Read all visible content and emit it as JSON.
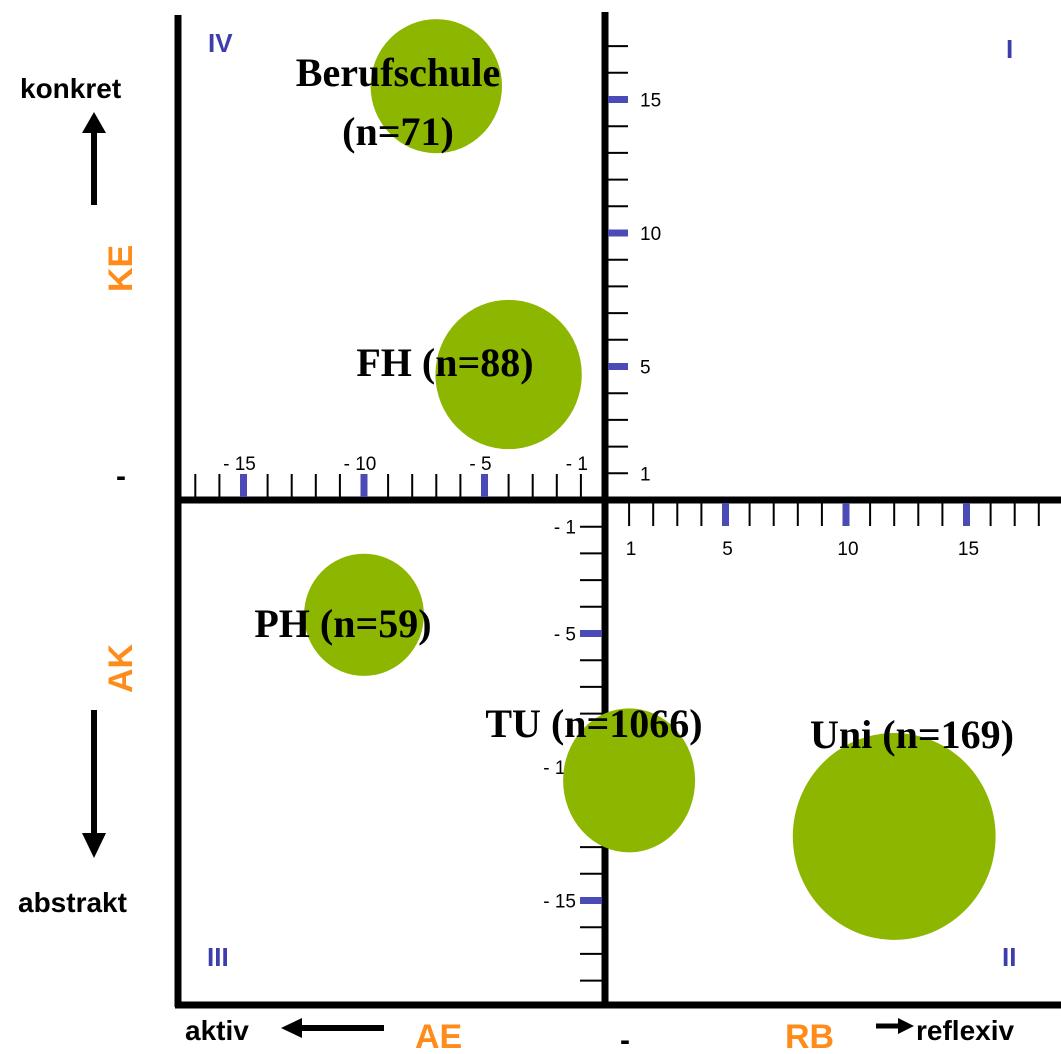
{
  "colors": {
    "bubble": "#8db600",
    "orange": "#ff8c1a",
    "quadrant": "#3d3dab",
    "tick_major": "#4b4bb5",
    "axis": "#000000"
  },
  "labels": {
    "konkret": "konkret",
    "abstrakt": "abstrakt",
    "ke": "KE",
    "ak": "AK",
    "ae": "AE",
    "rb": "RB",
    "aktiv": "aktiv",
    "reflexiv": "reflexiv",
    "dash_left": "-",
    "dash_bottom": "-"
  },
  "quadrants": {
    "q1": "I",
    "q2": "II",
    "q3": "III",
    "q4": "IV"
  },
  "chart_data": {
    "type": "scatter",
    "bubbles": [
      {
        "label": "Berufschule",
        "label2": "(n=71)",
        "n": 71,
        "x": -7,
        "y": 15.5
      },
      {
        "label": "FH (n=88)",
        "n": 88,
        "x": -4,
        "y": 4.7
      },
      {
        "label": "PH (n=59)",
        "n": 59,
        "x": -10,
        "y": -4.3
      },
      {
        "label": "TU (n=1066)",
        "n": 1066,
        "x": 1,
        "y": -10.5
      },
      {
        "label": "Uni (n=169)",
        "n": 169,
        "x": 12,
        "y": -12.6
      }
    ],
    "x_ticks_left": [
      "- 15",
      "- 10",
      "- 5",
      "- 1"
    ],
    "x_ticks_right": [
      "1",
      "5",
      "10",
      "15"
    ],
    "y_ticks_top": [
      "15",
      "10",
      "5",
      "1"
    ],
    "y_ticks_bottom": [
      "- 1",
      "- 5",
      "- 10",
      "- 15"
    ]
  }
}
